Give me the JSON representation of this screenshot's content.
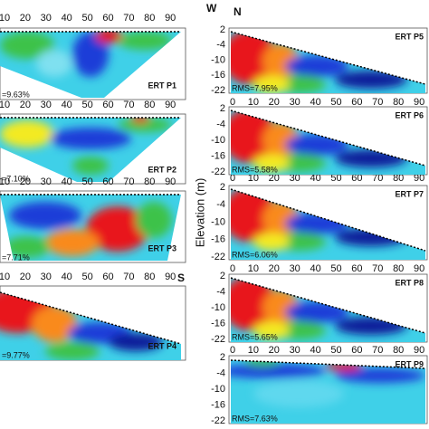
{
  "labels": {
    "west": "W",
    "north": "N",
    "south": "S",
    "y_axis": "Elevation (m)"
  },
  "left_x_ticks": [
    "10",
    "20",
    "30",
    "40",
    "50",
    "60",
    "70",
    "80",
    "90"
  ],
  "right_x_ticks": [
    "0",
    "10",
    "20",
    "30",
    "40",
    "50",
    "60",
    "70",
    "80",
    "90"
  ],
  "right_y_ticks": [
    "2",
    "-4",
    "-10",
    "-16",
    "-22"
  ],
  "left_panels": [
    {
      "name": "ERT P1",
      "rms": "=9.63%"
    },
    {
      "name": "ERT P2",
      "rms": "=7.10%"
    },
    {
      "name": "ERT P3",
      "rms": "=7.71%"
    },
    {
      "name": "ERT P4",
      "rms": "=9.77%"
    }
  ],
  "right_panels": [
    {
      "name": "ERT P5",
      "rms": "RMS=7.95%"
    },
    {
      "name": "ERT P6",
      "rms": "RMS=5.58%"
    },
    {
      "name": "ERT P7",
      "rms": "RMS=6.06%"
    },
    {
      "name": "ERT P8",
      "rms": "RMS=5.65%"
    },
    {
      "name": "ERT P9",
      "rms": "RMS=7.63%"
    }
  ]
}
